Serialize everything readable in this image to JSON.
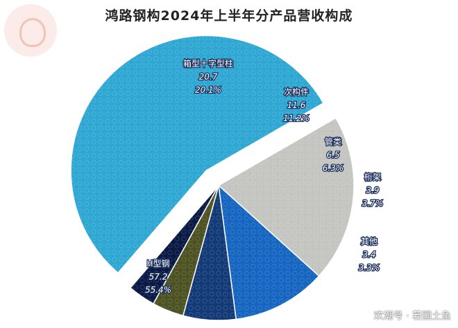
{
  "chart_data": {
    "type": "pie",
    "title": "鸿路钢构2024年上半年分产品营收构成",
    "slices": [
      {
        "name": "H型钢",
        "value": "57.2",
        "percent": "55.4%",
        "num": 57.2,
        "color": "#2fa7d3"
      },
      {
        "name": "箱型十字型柱",
        "value": "20.7",
        "percent": "20.1%",
        "num": 20.7,
        "color": "#c4c4c0"
      },
      {
        "name": "次构件",
        "value": "11.6",
        "percent": "11.2%",
        "num": 11.6,
        "color": "#1665c0"
      },
      {
        "name": "管类",
        "value": "6.5",
        "percent": "6.3%",
        "num": 6.5,
        "color": "#133a76"
      },
      {
        "name": "桁架",
        "value": "3.9",
        "percent": "3.7%",
        "num": 3.9,
        "color": "#4d5222"
      },
      {
        "name": "其他",
        "value": "3.4",
        "percent": "3.3%",
        "num": 3.4,
        "color": "#0b1a45"
      }
    ]
  },
  "watermark": "欢潮号 · 若国土鱼"
}
